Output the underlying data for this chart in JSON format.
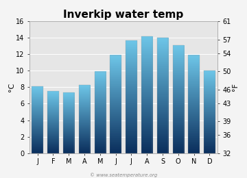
{
  "title": "Inverkip water temp",
  "months": [
    "J",
    "F",
    "M",
    "A",
    "M",
    "J",
    "J",
    "A",
    "S",
    "O",
    "N",
    "D"
  ],
  "values_c": [
    8.1,
    7.5,
    7.4,
    8.3,
    9.9,
    11.9,
    13.7,
    14.2,
    14.0,
    13.1,
    11.9,
    10.0
  ],
  "ylim_c": [
    0,
    16
  ],
  "yticks_c": [
    0,
    2,
    4,
    6,
    8,
    10,
    12,
    14,
    16
  ],
  "yticks_f": [
    32,
    36,
    39,
    43,
    46,
    50,
    54,
    57,
    61
  ],
  "ylabel_left": "°C",
  "ylabel_right": "°F",
  "bar_color_top": "#6ec6e8",
  "bar_color_bottom": "#0a2e5c",
  "bg_color": "#f4f4f4",
  "plot_bg_color": "#e6e6e6",
  "grid_color": "#ffffff",
  "watermark": "© www.seatemperature.org",
  "title_fontsize": 11,
  "tick_fontsize": 7,
  "label_fontsize": 8,
  "bar_width": 0.72
}
